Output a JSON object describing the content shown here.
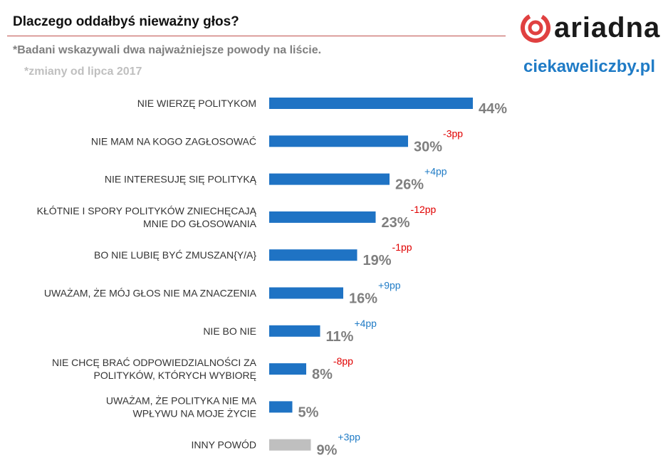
{
  "header": {
    "title": "Dlaczego oddałbyś nieważny głos?",
    "note_1": "*Badani wskazywali dwa najważniejsze powody na liście.",
    "note_2": "*zmiany od lipca 2017",
    "logo_text": "ariadna",
    "website": "ciekaweliczby.pl"
  },
  "colors": {
    "bar_primary": "#1f73c4",
    "bar_other": "#bfbfbf",
    "change_positive": "#1f7bc6",
    "change_negative": "#e00000",
    "title_rule": "#c0504d",
    "logo_red": "#e04040"
  },
  "chart_data": {
    "type": "bar",
    "orientation": "horizontal",
    "title": "Dlaczego oddałbyś nieważny głos?",
    "unit": "%",
    "xlim": [
      0,
      44
    ],
    "categories": [
      [
        "NIE WIERZĘ POLITYKOM"
      ],
      [
        "NIE MAM NA KOGO ZAGŁOSOWAĆ"
      ],
      [
        "NIE INTERESUJĘ SIĘ POLITYKĄ"
      ],
      [
        "KŁÓTNIE I SPORY POLITYKÓW ZNIECHĘCAJĄ",
        "MNIE DO GŁOSOWANIA"
      ],
      [
        "BO NIE LUBIĘ BYĆ ZMUSZAN{Y/A}"
      ],
      [
        "UWAŻAM, ŻE MÓJ GŁOS NIE MA ZNACZENIA"
      ],
      [
        "NIE BO NIE"
      ],
      [
        "NIE CHCĘ BRAĆ ODPOWIEDZIALNOŚCI ZA",
        "POLITYKÓW, KTÓRYCH WYBIORĘ"
      ],
      [
        "UWAŻAM, ŻE POLITYKA NIE MA",
        "WPŁYWU NA MOJE ŻYCIE"
      ],
      [
        "INNY POWÓD"
      ]
    ],
    "values": [
      44,
      30,
      26,
      23,
      19,
      16,
      11,
      8,
      5,
      9
    ],
    "value_labels": [
      "44%",
      "30%",
      "26%",
      "23%",
      "19%",
      "16%",
      "11%",
      "8%",
      "5%",
      "9%"
    ],
    "changes": [
      "",
      "-3pp",
      "+4pp",
      "-12pp",
      "-1pp",
      "+9pp",
      "+4pp",
      "-8pp",
      "",
      "+3pp"
    ],
    "bar_kind": [
      "primary",
      "primary",
      "primary",
      "primary",
      "primary",
      "primary",
      "primary",
      "primary",
      "primary",
      "other"
    ]
  }
}
